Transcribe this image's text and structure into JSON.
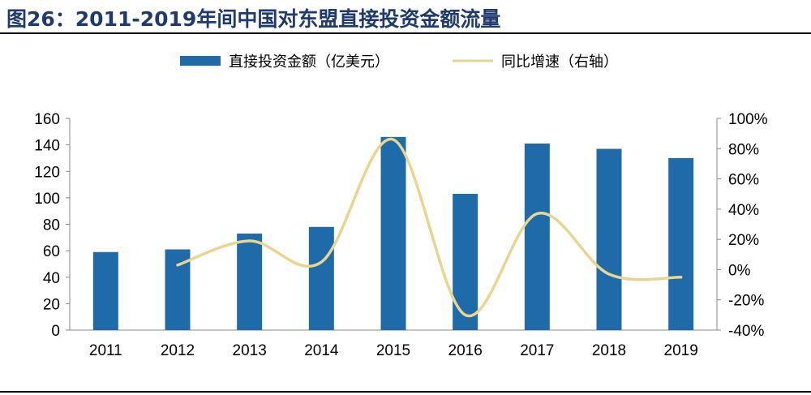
{
  "figure": {
    "title": "图26：2011-2019年间中国对东盟直接投资金额流量"
  },
  "colors": {
    "bar": "#1f6aa9",
    "line": "#e8d68e",
    "title": "#1f3a6e"
  },
  "chart_data": {
    "type": "bar",
    "categories": [
      "2011",
      "2012",
      "2013",
      "2014",
      "2015",
      "2016",
      "2017",
      "2018",
      "2019"
    ],
    "series": [
      {
        "name": "直接投资金额（亿美元）",
        "type": "bar",
        "axis": "left",
        "values": [
          59,
          61,
          73,
          78,
          146,
          103,
          141,
          137,
          130
        ]
      },
      {
        "name": "同比增速（右轴）",
        "type": "line",
        "axis": "right",
        "values": [
          null,
          3,
          19,
          5,
          86,
          -30,
          37,
          -3,
          -5
        ]
      }
    ],
    "y_left": {
      "ylim": [
        0,
        160
      ],
      "ticks": [
        "0",
        "20",
        "40",
        "60",
        "80",
        "100",
        "120",
        "140",
        "160"
      ]
    },
    "y_right": {
      "ylim": [
        -40,
        100
      ],
      "unit": "%",
      "ticks": [
        "-40%",
        "-20%",
        "0%",
        "20%",
        "40%",
        "60%",
        "80%",
        "100%"
      ]
    },
    "legend_position": "top",
    "grid": false
  }
}
